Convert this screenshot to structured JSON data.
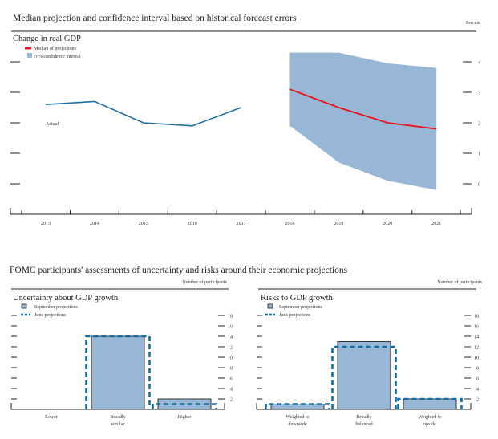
{
  "page": {
    "top_title": "Median projection and confidence interval based on historical forecast errors",
    "top_unit": "Percent",
    "bottom_title": "FOMC participants' assessments of uncertainty and risks around their economic projections"
  },
  "colors": {
    "actual_line": "#1f6fa3",
    "median_line": "#e8141b",
    "confidence_band": "#98b7d6",
    "bar_fill": "#98b7d6",
    "bar_stroke": "#222222",
    "june_dash": "#0f6fa3",
    "axis": "#222222"
  },
  "chart_data": [
    {
      "type": "area",
      "title": "Change in real GDP",
      "unit": "Percent",
      "x": [
        "2013",
        "2014",
        "2015",
        "2016",
        "2017",
        "2018",
        "2019",
        "2020",
        "2021"
      ],
      "ylim": [
        -0.4,
        4.6
      ],
      "yticks": [
        0,
        1,
        2,
        3,
        4
      ],
      "legend": [
        {
          "name": "Median of projections",
          "kind": "line"
        },
        {
          "name": "70% confidence interval",
          "kind": "swatch"
        }
      ],
      "annotations": [
        {
          "text": "Actual",
          "x": "2013"
        }
      ],
      "series": [
        {
          "name": "Actual",
          "x": [
            "2013",
            "2014",
            "2015",
            "2016",
            "2017"
          ],
          "values": [
            2.6,
            2.7,
            2.0,
            1.9,
            2.5
          ]
        },
        {
          "name": "Median of projections",
          "x": [
            "2018",
            "2019",
            "2020",
            "2021"
          ],
          "values": [
            3.1,
            2.5,
            2.0,
            1.8
          ]
        },
        {
          "name": "70% confidence interval upper",
          "x": [
            "2018",
            "2019",
            "2020",
            "2021"
          ],
          "values": [
            4.3,
            4.3,
            3.95,
            3.8
          ]
        },
        {
          "name": "70% confidence interval lower",
          "x": [
            "2018",
            "2019",
            "2020",
            "2021"
          ],
          "values": [
            1.9,
            0.7,
            0.1,
            -0.2
          ]
        }
      ]
    },
    {
      "type": "bar",
      "title": "Uncertainty about GDP growth",
      "unit": "Number of participants",
      "categories": [
        "Lower",
        "Broadly similar",
        "Higher"
      ],
      "category_lines": [
        [
          "Lower"
        ],
        [
          "Broadly",
          "similar"
        ],
        [
          "Higher"
        ]
      ],
      "ylim": [
        0,
        18
      ],
      "yticks": [
        2,
        4,
        6,
        8,
        10,
        12,
        14,
        16,
        18
      ],
      "series": [
        {
          "name": "September projections",
          "values": [
            0,
            14,
            2
          ]
        },
        {
          "name": "June projections",
          "values": [
            0,
            14,
            1
          ]
        }
      ]
    },
    {
      "type": "bar",
      "title": "Risks to GDP growth",
      "unit": "Number of participants",
      "categories": [
        "Weighted to downside",
        "Broadly balanced",
        "Weighted to upside"
      ],
      "category_lines": [
        [
          "Weighted to",
          "downside"
        ],
        [
          "Broadly",
          "balanced"
        ],
        [
          "Weighted to",
          "upside"
        ]
      ],
      "ylim": [
        0,
        18
      ],
      "yticks": [
        2,
        4,
        6,
        8,
        10,
        12,
        14,
        16,
        18
      ],
      "series": [
        {
          "name": "September projections",
          "values": [
            1,
            13,
            2
          ]
        },
        {
          "name": "June projections",
          "values": [
            1,
            12,
            2
          ]
        }
      ]
    }
  ]
}
